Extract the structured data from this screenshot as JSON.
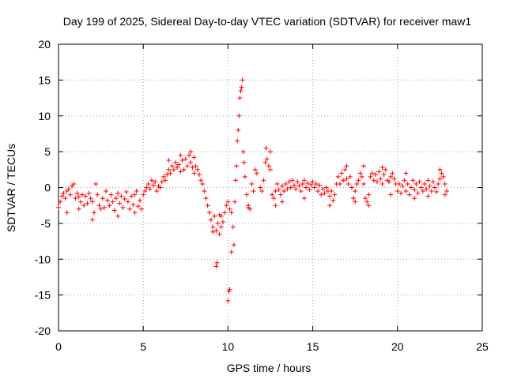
{
  "chart_data": {
    "type": "scatter",
    "title": "Day 199 of 2025, Sidereal Day-to-day VTEC variation (SDTVAR) for receiver maw1",
    "xlabel": "GPS time / hours",
    "ylabel": "SDTVAR / TECUs",
    "xlim": [
      0,
      25
    ],
    "ylim": [
      -20,
      20
    ],
    "xticks": [
      "0",
      "5",
      "10",
      "15",
      "20",
      "25"
    ],
    "yticks": [
      "20",
      "15",
      "10",
      "5",
      "0",
      "-5",
      "-10",
      "-15",
      "-20"
    ],
    "grid": true,
    "marker": "+",
    "color": "#ff0000",
    "series": [
      {
        "name": "SDTVAR",
        "points": [
          [
            0.0,
            -2.8
          ],
          [
            0.1,
            -2.0
          ],
          [
            0.2,
            -1.2
          ],
          [
            0.3,
            -0.8
          ],
          [
            0.4,
            -1.5
          ],
          [
            0.5,
            -0.5
          ],
          [
            0.6,
            -0.2
          ],
          [
            0.7,
            -1.0
          ],
          [
            0.8,
            0.2
          ],
          [
            0.9,
            0.5
          ],
          [
            1.0,
            -1.5
          ],
          [
            1.1,
            -0.8
          ],
          [
            1.2,
            -1.3
          ],
          [
            1.3,
            -2.0
          ],
          [
            1.4,
            -1.0
          ],
          [
            1.5,
            -2.5
          ],
          [
            1.6,
            -1.2
          ],
          [
            1.7,
            -2.2
          ],
          [
            1.8,
            -0.8
          ],
          [
            1.9,
            -1.5
          ],
          [
            2.0,
            -2.0
          ],
          [
            2.1,
            -3.5
          ],
          [
            2.2,
            0.5
          ],
          [
            2.3,
            -1.0
          ],
          [
            2.4,
            -2.5
          ],
          [
            2.5,
            -3.0
          ],
          [
            2.6,
            -1.5
          ],
          [
            2.7,
            -2.8
          ],
          [
            2.8,
            -0.5
          ],
          [
            2.9,
            -1.8
          ],
          [
            3.0,
            -2.5
          ],
          [
            3.1,
            -1.0
          ],
          [
            3.2,
            -2.0
          ],
          [
            3.3,
            -3.2
          ],
          [
            3.4,
            -1.5
          ],
          [
            3.5,
            -0.8
          ],
          [
            3.6,
            -2.2
          ],
          [
            3.7,
            -1.2
          ],
          [
            3.8,
            -2.8
          ],
          [
            3.9,
            -1.6
          ],
          [
            4.0,
            -0.6
          ],
          [
            4.1,
            -2.0
          ],
          [
            4.2,
            -3.0
          ],
          [
            4.3,
            -1.2
          ],
          [
            4.4,
            -2.4
          ],
          [
            4.5,
            -1.0
          ],
          [
            4.6,
            -0.5
          ],
          [
            4.7,
            -2.6
          ],
          [
            4.8,
            -1.8
          ],
          [
            4.9,
            -3.0
          ],
          [
            5.0,
            -1.0
          ],
          [
            5.1,
            -0.5
          ],
          [
            5.2,
            0.0
          ],
          [
            5.3,
            0.5
          ],
          [
            5.4,
            -0.2
          ],
          [
            5.5,
            1.0
          ],
          [
            5.6,
            0.3
          ],
          [
            5.7,
            0.8
          ],
          [
            5.8,
            -0.5
          ],
          [
            5.9,
            0.2
          ],
          [
            6.0,
            0.0
          ],
          [
            6.1,
            0.8
          ],
          [
            6.2,
            1.5
          ],
          [
            6.3,
            1.0
          ],
          [
            6.4,
            1.8
          ],
          [
            6.5,
            2.5
          ],
          [
            6.6,
            2.0
          ],
          [
            6.7,
            3.0
          ],
          [
            6.8,
            2.5
          ],
          [
            6.9,
            3.5
          ],
          [
            7.0,
            2.8
          ],
          [
            7.1,
            3.2
          ],
          [
            7.2,
            2.2
          ],
          [
            7.3,
            3.8
          ],
          [
            7.4,
            2.5
          ],
          [
            7.5,
            4.0
          ],
          [
            7.6,
            3.0
          ],
          [
            7.7,
            4.5
          ],
          [
            7.8,
            3.5
          ],
          [
            7.9,
            2.8
          ],
          [
            8.0,
            2.0
          ],
          [
            8.1,
            3.0
          ],
          [
            8.2,
            2.5
          ],
          [
            8.3,
            1.8
          ],
          [
            8.4,
            1.0
          ],
          [
            8.5,
            0.5
          ],
          [
            8.6,
            -0.5
          ],
          [
            8.7,
            -1.5
          ],
          [
            8.8,
            -2.5
          ],
          [
            8.9,
            -3.5
          ],
          [
            9.0,
            -4.5
          ],
          [
            9.1,
            -5.5
          ],
          [
            9.2,
            -4.0
          ],
          [
            9.3,
            -6.0
          ],
          [
            9.4,
            -5.0
          ],
          [
            9.5,
            -6.5
          ],
          [
            9.6,
            -5.5
          ],
          [
            9.7,
            -4.8
          ],
          [
            9.8,
            -3.5
          ],
          [
            9.9,
            -2.5
          ],
          [
            9.3,
            -11.0
          ],
          [
            9.35,
            -10.5
          ],
          [
            9.6,
            -4.0
          ],
          [
            10.0,
            -15.8
          ],
          [
            10.05,
            -14.5
          ],
          [
            10.1,
            -14.2
          ],
          [
            10.0,
            -2.0
          ],
          [
            10.1,
            -3.0
          ],
          [
            10.2,
            -3.5
          ],
          [
            10.3,
            -5.5
          ],
          [
            10.35,
            -8.0
          ],
          [
            10.4,
            -2.0
          ],
          [
            10.45,
            1.0
          ],
          [
            10.5,
            3.0
          ],
          [
            10.55,
            6.5
          ],
          [
            10.6,
            8.0
          ],
          [
            10.65,
            10.0
          ],
          [
            10.7,
            12.5
          ],
          [
            10.75,
            13.5
          ],
          [
            10.8,
            14.0
          ],
          [
            10.85,
            15.0
          ],
          [
            10.9,
            5.0
          ],
          [
            10.95,
            3.5
          ],
          [
            11.0,
            1.5
          ],
          [
            11.1,
            -1.0
          ],
          [
            11.2,
            -2.5
          ],
          [
            11.3,
            -3.0
          ],
          [
            11.4,
            0.5
          ],
          [
            11.6,
            2.5
          ],
          [
            11.7,
            2.0
          ],
          [
            11.9,
            0.0
          ],
          [
            12.0,
            -0.5
          ],
          [
            12.1,
            1.0
          ],
          [
            12.2,
            3.5
          ],
          [
            12.25,
            5.5
          ],
          [
            12.3,
            4.0
          ],
          [
            12.4,
            3.0
          ],
          [
            12.5,
            2.5
          ],
          [
            12.6,
            -1.0
          ],
          [
            12.7,
            -1.5
          ],
          [
            12.8,
            -0.5
          ],
          [
            12.9,
            0.5
          ],
          [
            13.0,
            -0.3
          ],
          [
            13.1,
            -1.0
          ],
          [
            13.2,
            0.2
          ],
          [
            13.3,
            -0.5
          ],
          [
            13.4,
            0.5
          ],
          [
            13.5,
            -0.2
          ],
          [
            13.6,
            0.8
          ],
          [
            13.7,
            0.0
          ],
          [
            13.8,
            1.0
          ],
          [
            13.9,
            0.3
          ],
          [
            14.0,
            -0.2
          ],
          [
            14.1,
            0.8
          ],
          [
            14.2,
            0.2
          ],
          [
            14.3,
            -0.5
          ],
          [
            14.4,
            0.5
          ],
          [
            14.5,
            1.0
          ],
          [
            14.6,
            0.0
          ],
          [
            14.7,
            0.6
          ],
          [
            14.8,
            -0.3
          ],
          [
            14.9,
            0.4
          ],
          [
            15.0,
            0.8
          ],
          [
            15.1,
            0.0
          ],
          [
            15.2,
            0.5
          ],
          [
            15.3,
            -0.5
          ],
          [
            15.4,
            0.3
          ],
          [
            15.5,
            -1.0
          ],
          [
            15.6,
            -0.2
          ],
          [
            15.7,
            -0.8
          ],
          [
            15.8,
            0.0
          ],
          [
            15.9,
            -0.5
          ],
          [
            16.0,
            -1.2
          ],
          [
            16.1,
            -0.5
          ],
          [
            16.2,
            -1.8
          ],
          [
            16.3,
            -1.0
          ],
          [
            16.4,
            0.5
          ],
          [
            16.5,
            1.5
          ],
          [
            16.6,
            0.5
          ],
          [
            16.7,
            2.0
          ],
          [
            16.8,
            1.0
          ],
          [
            16.9,
            2.5
          ],
          [
            17.0,
            1.2
          ],
          [
            17.1,
            0.5
          ],
          [
            17.2,
            1.5
          ],
          [
            17.3,
            0.0
          ],
          [
            17.4,
            -1.5
          ],
          [
            17.5,
            -0.5
          ],
          [
            17.6,
            0.5
          ],
          [
            17.7,
            1.0
          ],
          [
            17.8,
            2.0
          ],
          [
            17.9,
            1.5
          ],
          [
            18.0,
            0.5
          ],
          [
            18.1,
            -1.5
          ],
          [
            18.2,
            -2.0
          ],
          [
            18.3,
            -1.0
          ],
          [
            18.4,
            1.5
          ],
          [
            18.5,
            2.0
          ],
          [
            18.6,
            1.0
          ],
          [
            18.7,
            1.8
          ],
          [
            18.8,
            0.8
          ],
          [
            18.9,
            2.2
          ],
          [
            19.0,
            1.2
          ],
          [
            19.1,
            0.5
          ],
          [
            19.2,
            1.8
          ],
          [
            19.3,
            2.5
          ],
          [
            19.4,
            1.0
          ],
          [
            19.5,
            0.8
          ],
          [
            19.6,
            1.5
          ],
          [
            19.7,
            2.0
          ],
          [
            19.8,
            1.2
          ],
          [
            19.9,
            0.5
          ],
          [
            20.0,
            -0.5
          ],
          [
            20.1,
            0.5
          ],
          [
            20.2,
            -0.8
          ],
          [
            20.3,
            0.2
          ],
          [
            20.4,
            1.0
          ],
          [
            20.5,
            -0.5
          ],
          [
            20.6,
            0.5
          ],
          [
            20.7,
            -1.0
          ],
          [
            20.8,
            0.0
          ],
          [
            20.9,
            1.0
          ],
          [
            21.0,
            -0.3
          ],
          [
            21.1,
            0.5
          ],
          [
            21.2,
            -0.8
          ],
          [
            21.3,
            0.8
          ],
          [
            21.4,
            0.0
          ],
          [
            21.5,
            -0.5
          ],
          [
            21.6,
            0.5
          ],
          [
            21.7,
            -0.2
          ],
          [
            21.8,
            1.0
          ],
          [
            21.9,
            0.2
          ],
          [
            22.0,
            -0.5
          ],
          [
            22.1,
            0.8
          ],
          [
            22.2,
            0.0
          ],
          [
            22.3,
            -0.6
          ],
          [
            22.4,
            0.5
          ],
          [
            22.5,
            1.2
          ],
          [
            22.6,
            2.0
          ],
          [
            22.7,
            1.5
          ],
          [
            22.8,
            0.5
          ],
          [
            22.9,
            -0.5
          ],
          [
            0.5,
            -3.5
          ],
          [
            1.2,
            -3.0
          ],
          [
            2.0,
            -4.5
          ],
          [
            3.5,
            -4.0
          ],
          [
            4.5,
            -3.5
          ],
          [
            6.5,
            3.8
          ],
          [
            7.2,
            4.5
          ],
          [
            7.8,
            5.0
          ],
          [
            8.0,
            4.2
          ],
          [
            9.1,
            -6.2
          ],
          [
            9.5,
            -3.8
          ],
          [
            10.2,
            -9.0
          ],
          [
            11.2,
            -2.8
          ],
          [
            11.5,
            -0.5
          ],
          [
            12.5,
            5.0
          ],
          [
            12.8,
            -2.5
          ],
          [
            13.2,
            -2.0
          ],
          [
            14.5,
            -1.5
          ],
          [
            16.0,
            -2.5
          ],
          [
            17.0,
            3.0
          ],
          [
            17.5,
            -2.0
          ],
          [
            18.3,
            -2.5
          ],
          [
            19.1,
            2.8
          ],
          [
            19.6,
            -1.0
          ],
          [
            20.5,
            2.0
          ],
          [
            21.0,
            -1.5
          ],
          [
            21.8,
            -1.2
          ],
          [
            22.5,
            2.5
          ],
          [
            22.8,
            -1.0
          ],
          [
            18.0,
            3.0
          ]
        ]
      }
    ]
  }
}
